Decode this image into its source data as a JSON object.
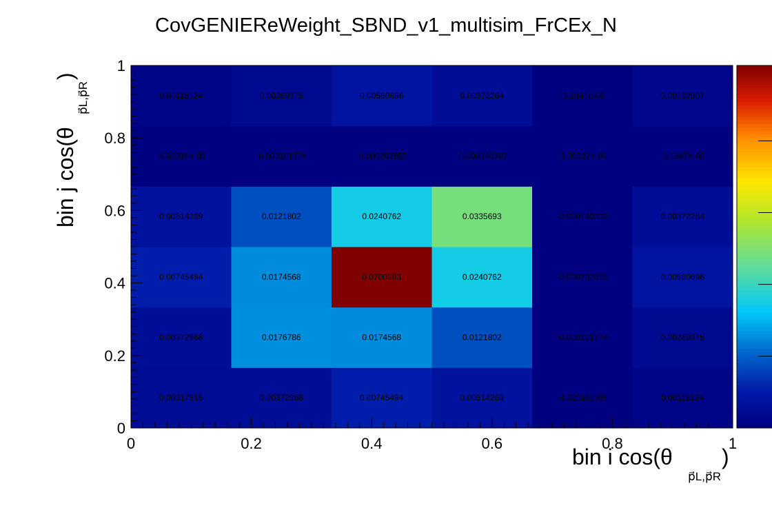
{
  "chart_data": {
    "type": "heatmap",
    "title": "CovGENIEReWeight_SBND_v1_multisim_FrCEx_N",
    "xlabel": {
      "main": "bin i cos(θ",
      "sub": "p⃗L,p⃗R",
      "close": ")"
    },
    "ylabel": {
      "main": "bin j cos(θ",
      "sub": "p⃗L,p⃗R",
      "close": ")"
    },
    "xlim": [
      0,
      1
    ],
    "ylim": [
      0,
      1
    ],
    "x_ticks": [
      "0",
      "0.2",
      "0.4",
      "0.6",
      "0.8",
      "1"
    ],
    "y_ticks": [
      "0",
      "0.2",
      "0.4",
      "0.6",
      "0.8",
      "1"
    ],
    "x_bin_edges": [
      0,
      0.1667,
      0.3333,
      0.5,
      0.6667,
      0.8333,
      1
    ],
    "y_bin_edges": [
      0,
      0.1667,
      0.3333,
      0.5,
      0.6667,
      0.8333,
      1
    ],
    "z_range": [
      -0.000202855,
      0.0700983
    ],
    "colormap": "rainbow",
    "rows_bottom_to_top": [
      [
        "0.00317515",
        "0.00372968",
        "0.00745494",
        "0.00514269",
        "-4.32016e-05",
        "0.00118124"
      ],
      [
        "0.00372968",
        "0.0176786",
        "0.0174568",
        "0.0121802",
        "-0.000101774",
        "0.00269375"
      ],
      [
        "0.00745494",
        "0.0174568",
        "0.0700983",
        "0.0240762",
        "-0.000202855",
        "0.00560696"
      ],
      [
        "0.00514269",
        "0.0121802",
        "0.0240762",
        "0.0335693",
        "-0.000140302",
        "0.00372264"
      ],
      [
        "-4.32016e-05",
        "-0.000101774",
        "-0.000202855",
        "-0.000140302",
        "-2.35322e-06",
        "-3.1847e-05"
      ],
      [
        "0.00118124",
        "0.00269375",
        "0.00560696",
        "0.00372264",
        "-3.1847e-05",
        "0.00192907"
      ]
    ]
  }
}
